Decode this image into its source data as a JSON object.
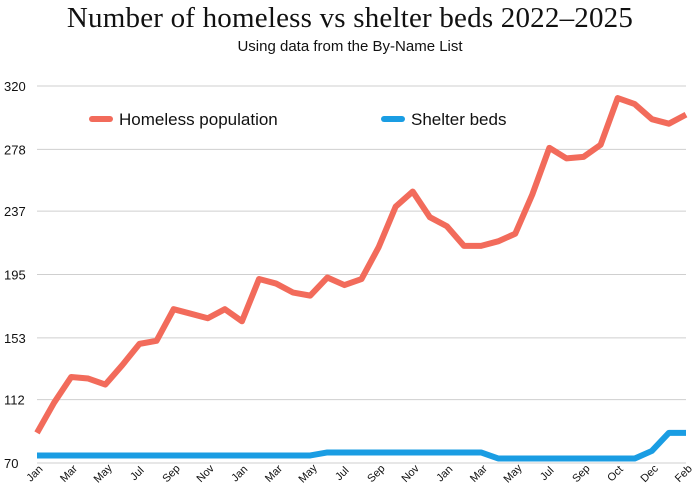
{
  "chart_data": {
    "type": "line",
    "title": "Number of homeless vs shelter beds  2022–2025",
    "subtitle": "Using data from the By-Name List",
    "xlabel": "",
    "ylabel": "",
    "ylim": [
      70,
      320
    ],
    "y_ticks": [
      "70",
      "112",
      "153",
      "195",
      "237",
      "278",
      "320"
    ],
    "y_tick_values": [
      70,
      112,
      153,
      195,
      237,
      278,
      320
    ],
    "grid": "horizontal",
    "legend_position": "top",
    "x_labels": [
      "Jan",
      "Mar",
      "May",
      "Jul",
      "Sep",
      "Nov",
      "Jan",
      "Mar",
      "May",
      "Jul",
      "Sep",
      "Nov",
      "Jan",
      "Mar",
      "May",
      "Jul",
      "Sep",
      "Oct",
      "Dec",
      "Feb"
    ],
    "series": [
      {
        "name": "Homeless population",
        "color": "#f26b5b",
        "values": [
          90,
          110,
          127,
          126,
          122,
          135,
          149,
          151,
          172,
          169,
          166,
          172,
          164,
          192,
          189,
          183,
          181,
          193,
          188,
          192,
          213,
          240,
          250,
          233,
          227,
          214,
          214,
          217,
          222,
          248,
          279,
          272,
          273,
          281,
          312,
          308,
          298,
          295,
          301
        ]
      },
      {
        "name": "Shelter beds",
        "color": "#1a9de3",
        "values": [
          75,
          75,
          75,
          75,
          75,
          75,
          75,
          75,
          75,
          75,
          75,
          75,
          75,
          75,
          75,
          75,
          75,
          77,
          77,
          77,
          77,
          77,
          77,
          77,
          77,
          77,
          77,
          73,
          73,
          73,
          73,
          73,
          73,
          73,
          73,
          73,
          78,
          90,
          90
        ]
      }
    ]
  }
}
